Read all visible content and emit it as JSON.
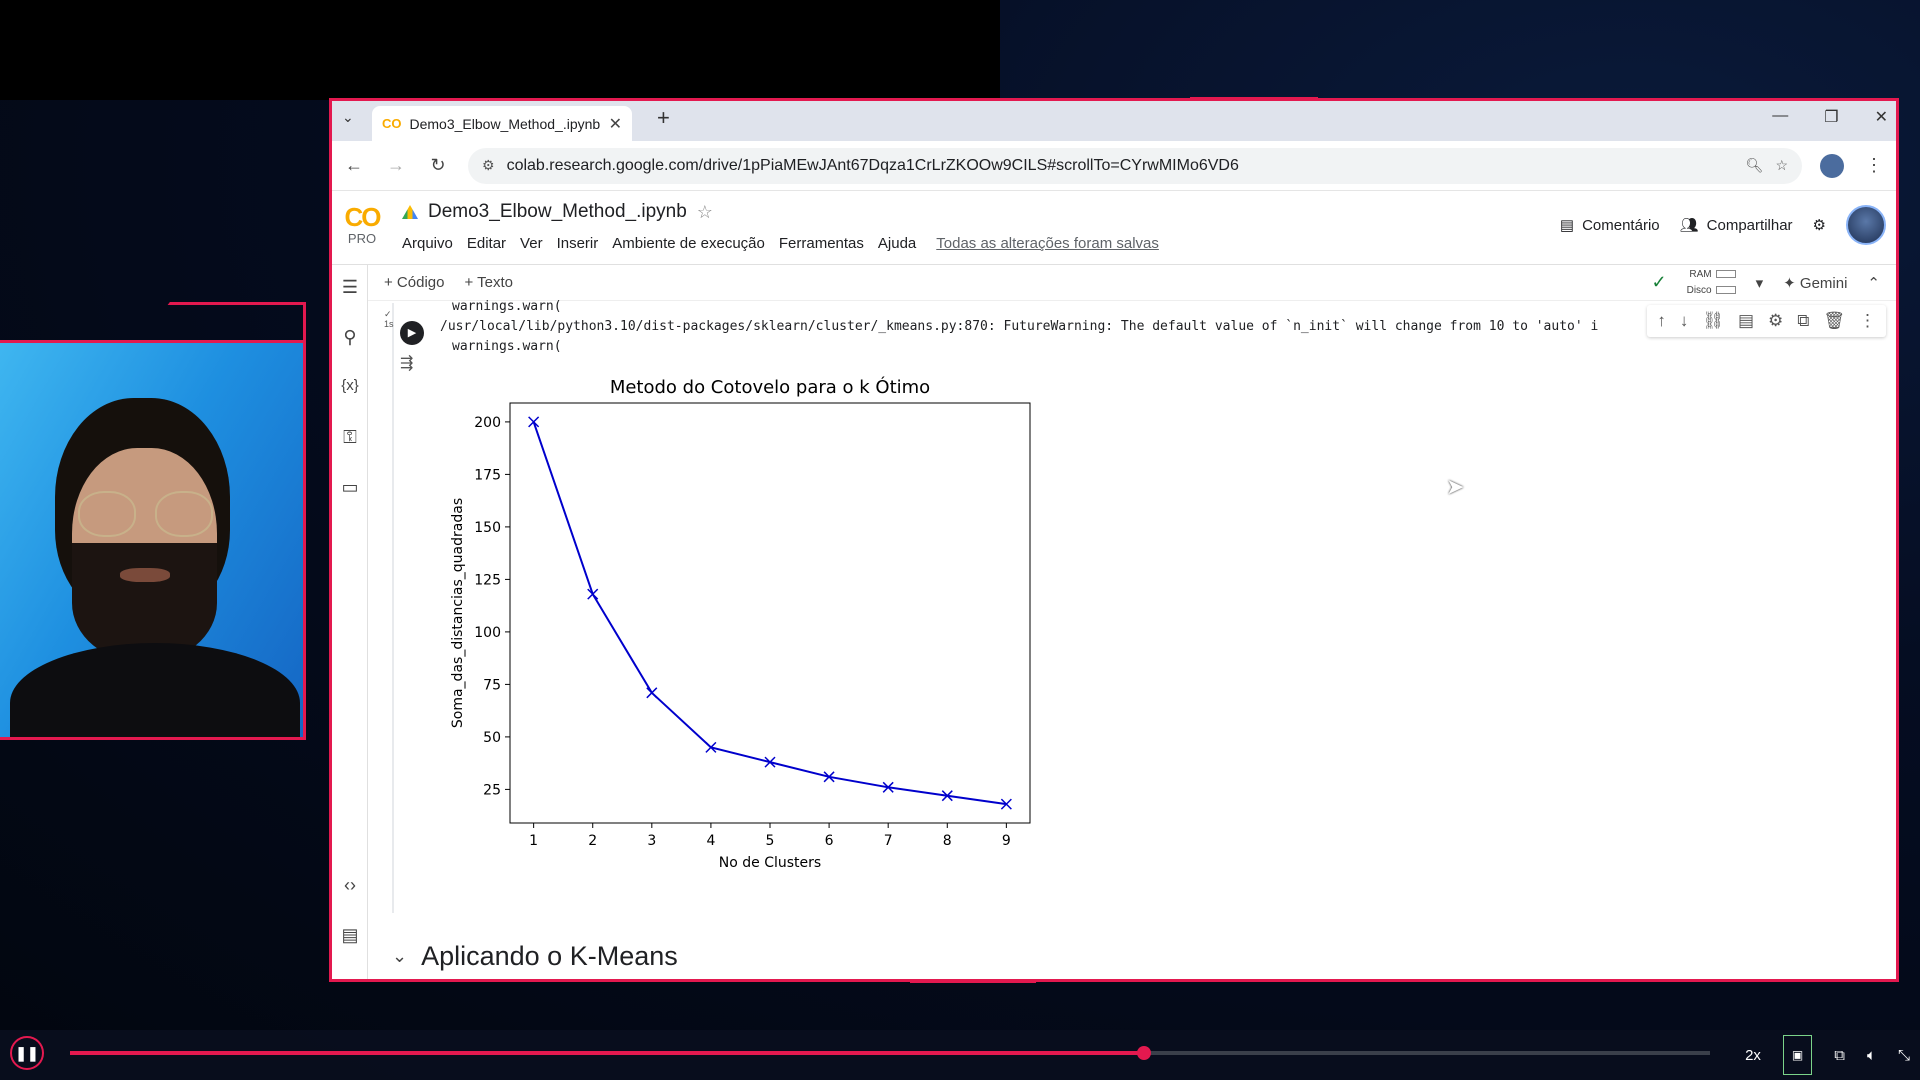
{
  "browser": {
    "tab_title": "Demo3_Elbow_Method_.ipynb",
    "tab_favicon": "CO",
    "url": "colab.research.google.com/drive/1pPiaMEwJAnt67Dqza1CrLrZKOOw9CILS#scrollTo=CYrwMIMo6VD6"
  },
  "colab": {
    "logo": "CO",
    "plan": "PRO",
    "notebook_title": "Demo3_Elbow_Method_.ipynb",
    "menu": [
      "Arquivo",
      "Editar",
      "Ver",
      "Inserir",
      "Ambiente de execução",
      "Ferramentas",
      "Ajuda"
    ],
    "saved_status": "Todas as alterações foram salvas",
    "comment_label": "Comentário",
    "share_label": "Compartilhar"
  },
  "toolbar": {
    "add_code": "+ Código",
    "add_text": "+ Texto",
    "ram_label": "RAM",
    "disk_label": "Disco",
    "gemini": "Gemini"
  },
  "cell": {
    "run_time": "1s",
    "output_lines": [
      "warnings.warn(",
      "/usr/local/lib/python3.10/dist-packages/sklearn/cluster/_kmeans.py:870: FutureWarning: The default value of `n_init` will change from 10 to 'auto' i",
      "warnings.warn("
    ]
  },
  "section": {
    "title": "Aplicando o K-Means"
  },
  "player": {
    "speed": "2x",
    "progress": 0.655
  },
  "chart_data": {
    "type": "line",
    "title": "Metodo do Cotovelo para o k Ótimo",
    "xlabel": "No de Clusters",
    "ylabel": "Soma_das_distancias_quadradas",
    "x": [
      1,
      2,
      3,
      4,
      5,
      6,
      7,
      8,
      9
    ],
    "series": [
      {
        "values": [
          200,
          118,
          71,
          45,
          38,
          31,
          26,
          22,
          18
        ],
        "color": "#0000cc",
        "marker": "x"
      }
    ],
    "xticks": [
      "1",
      "2",
      "3",
      "4",
      "5",
      "6",
      "7",
      "8",
      "9"
    ],
    "yticks": [
      25,
      50,
      75,
      100,
      125,
      150,
      175,
      200
    ],
    "xlim": [
      0.6,
      9.4
    ],
    "ylim": [
      9,
      209
    ],
    "grid": false
  }
}
